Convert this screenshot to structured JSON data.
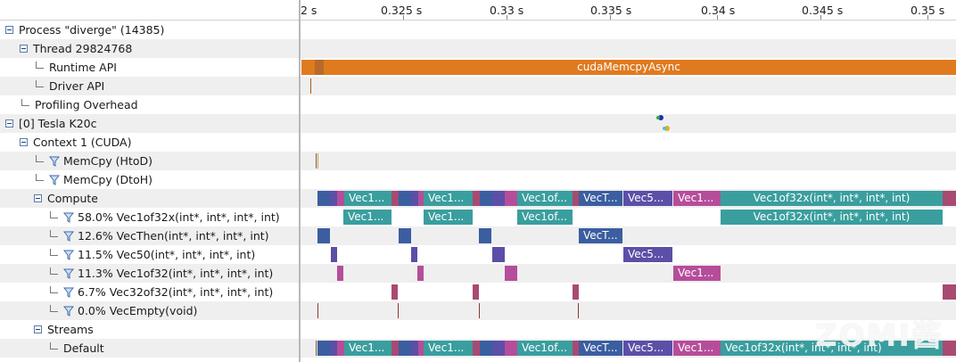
{
  "ruler": {
    "ticks": [
      "2 s",
      "0.325 s",
      "0.33 s",
      "0.335 s",
      "0.34 s",
      "0.345 s",
      "0.35 s"
    ]
  },
  "tree": {
    "rows": [
      {
        "label": "Process \"diverge\" (14385)",
        "indent": 0,
        "type": "expand"
      },
      {
        "label": "Thread 29824768",
        "indent": 1,
        "type": "expand"
      },
      {
        "label": "Runtime API",
        "indent": 2,
        "type": "leaf"
      },
      {
        "label": "Driver API",
        "indent": 2,
        "type": "leaf"
      },
      {
        "label": "Profiling Overhead",
        "indent": 1,
        "type": "leaf"
      },
      {
        "label": "[0] Tesla K20c",
        "indent": 0,
        "type": "expand"
      },
      {
        "label": "Context 1 (CUDA)",
        "indent": 1,
        "type": "expand"
      },
      {
        "label": "MemCpy (HtoD)",
        "indent": 2,
        "type": "filter"
      },
      {
        "label": "MemCpy (DtoH)",
        "indent": 2,
        "type": "filter"
      },
      {
        "label": "Compute",
        "indent": 2,
        "type": "expand"
      },
      {
        "label": "58.0% Vec1of32x(int*, int*, int*, int)",
        "indent": 3,
        "type": "filter"
      },
      {
        "label": "12.6% VecThen(int*, int*, int*, int)",
        "indent": 3,
        "type": "filter"
      },
      {
        "label": "11.5% Vec50(int*, int*, int*, int)",
        "indent": 3,
        "type": "filter"
      },
      {
        "label": "11.3% Vec1of32(int*, int*, int*, int)",
        "indent": 3,
        "type": "filter"
      },
      {
        "label": "6.7% Vec32of32(int*, int*, int*, int)",
        "indent": 3,
        "type": "filter"
      },
      {
        "label": "0.0% VecEmpty(void)",
        "indent": 3,
        "type": "filter"
      },
      {
        "label": "Streams",
        "indent": 2,
        "type": "expand"
      },
      {
        "label": "Default",
        "indent": 3,
        "type": "leaf"
      }
    ]
  },
  "timeline": {
    "runtime_label": "cudaMemcpyAsync",
    "kernels": {
      "vec1of32x_label": "Vec1...",
      "vec1of32x_long_label": "Vec1of32x(int*, int*, int*, int)",
      "vec1of_label": "Vec1of...",
      "vecthen_label": "VecT...",
      "vec50_label": "Vec5...",
      "vec1of32_label": "Vec1..."
    }
  },
  "colors": {
    "runtime": "#e07a1f",
    "teal": "#3a9e9e",
    "navy": "#3b5ea0",
    "purple": "#5b4fa8",
    "magenta": "#b64d9a",
    "maroon": "#a84a72",
    "brown": "#8a5a2a"
  },
  "watermark": "ZOMI酱"
}
